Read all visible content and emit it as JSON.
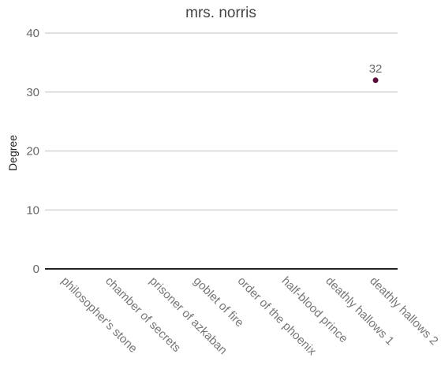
{
  "chart_data": {
    "type": "scatter",
    "title": "mrs. norris",
    "xlabel": "",
    "ylabel": "Degree",
    "categories": [
      "philosopher's stone",
      "chamber of secrets",
      "prisoner of azkaban",
      "goblet of fire",
      "order of the phoenix",
      "half-blood prince",
      "deathly hallows 1",
      "deathly hallows 2"
    ],
    "series": [
      {
        "values": [
          null,
          null,
          null,
          null,
          null,
          null,
          null,
          32
        ]
      }
    ],
    "data_labels": [
      null,
      null,
      null,
      null,
      null,
      null,
      null,
      "32"
    ],
    "yticks": [
      "0",
      "10",
      "20",
      "30",
      "40"
    ],
    "ylim": [
      0,
      40
    ],
    "grid": true,
    "legend": "none",
    "point_color": "#5a0b3a"
  }
}
